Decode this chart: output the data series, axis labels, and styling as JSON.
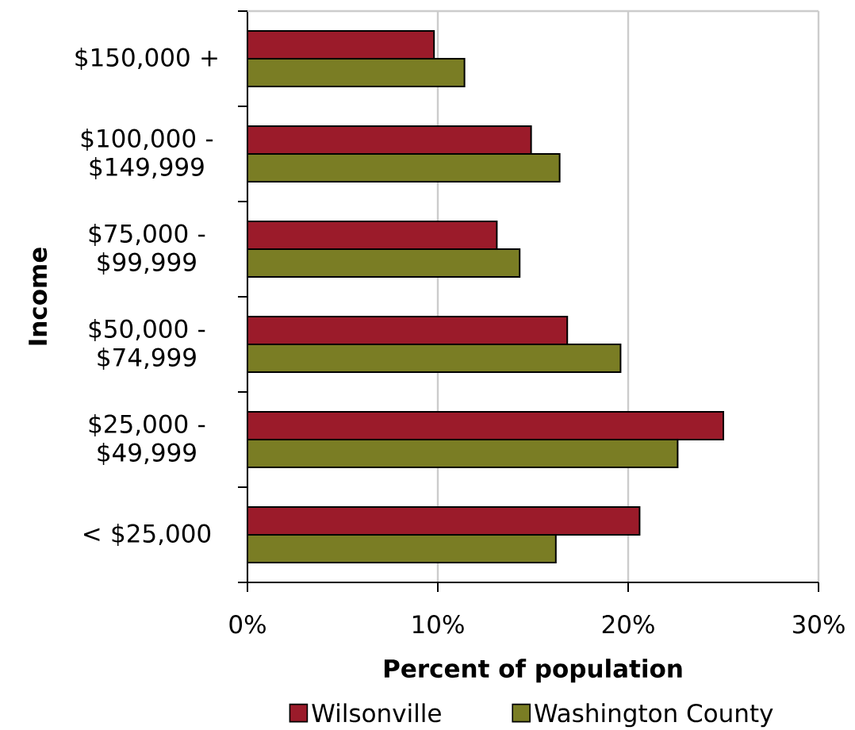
{
  "chart_data": {
    "type": "bar",
    "orientation": "horizontal",
    "categories": [
      "$150,000 +",
      "$100,000 - $149,999",
      "$75,000 - $99,999",
      "$50,000 - $74,999",
      "$25,000 - $49,999",
      "< $25,000"
    ],
    "series": [
      {
        "name": "Wilsonville",
        "color": "#9b1b2a",
        "values": [
          9.8,
          14.9,
          13.1,
          16.8,
          25.0,
          20.6
        ]
      },
      {
        "name": "Washington County",
        "color": "#7a7d24",
        "values": [
          11.4,
          16.4,
          14.3,
          19.6,
          22.6,
          16.2
        ]
      }
    ],
    "xlabel": "Percent of population",
    "ylabel": "Income",
    "xlim": [
      0,
      30
    ],
    "xticks": [
      {
        "value": 0,
        "label": "0%"
      },
      {
        "value": 10,
        "label": "10%"
      },
      {
        "value": 20,
        "label": "20%"
      },
      {
        "value": 30,
        "label": "30%"
      }
    ],
    "grid": "x",
    "legend": "bottom"
  }
}
